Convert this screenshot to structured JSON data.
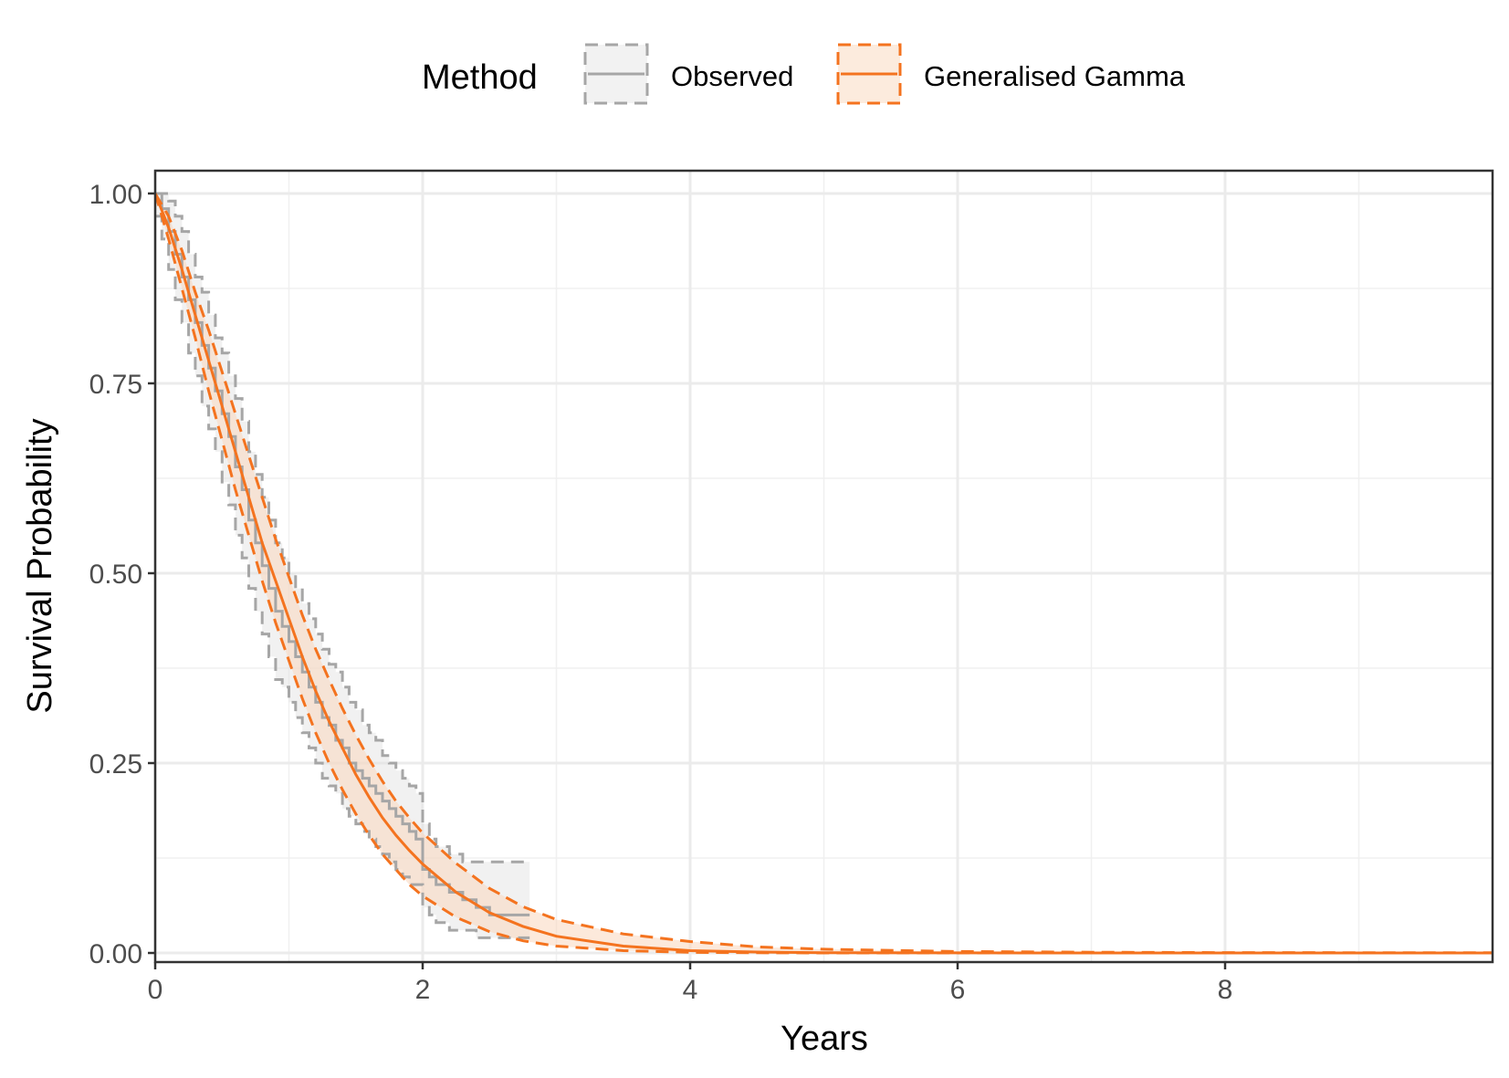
{
  "chart_data": {
    "type": "line",
    "xlabel": "Years",
    "ylabel": "Survival Probability",
    "xlim": [
      0,
      10
    ],
    "ylim": [
      -0.012,
      1.03
    ],
    "xticks": [
      0,
      2,
      4,
      6,
      8
    ],
    "xtick_labels": [
      "0",
      "2",
      "4",
      "6",
      "8"
    ],
    "yticks": [
      0,
      0.25,
      0.5,
      0.75,
      1
    ],
    "ytick_labels": [
      "0.00",
      "0.25",
      "0.50",
      "0.75",
      "1.00"
    ],
    "grid": true,
    "legend_position": "top",
    "legend": {
      "title": "Method",
      "entries": [
        "Observed",
        "Generalised Gamma"
      ]
    },
    "series": [
      {
        "name": "Observed",
        "color": "#a6a6a6",
        "step": true,
        "x": [
          0,
          0.05,
          0.1,
          0.15,
          0.2,
          0.25,
          0.3,
          0.35,
          0.4,
          0.45,
          0.5,
          0.55,
          0.6,
          0.65,
          0.7,
          0.75,
          0.8,
          0.85,
          0.9,
          0.95,
          1.0,
          1.05,
          1.1,
          1.15,
          1.2,
          1.25,
          1.3,
          1.35,
          1.4,
          1.45,
          1.5,
          1.55,
          1.6,
          1.65,
          1.7,
          1.75,
          1.8,
          1.85,
          1.9,
          1.95,
          2.0,
          2.05,
          2.1,
          2.2,
          2.3,
          2.4,
          2.5,
          2.8
        ],
        "y": [
          1.0,
          0.98,
          0.95,
          0.92,
          0.89,
          0.86,
          0.83,
          0.8,
          0.77,
          0.74,
          0.71,
          0.68,
          0.64,
          0.61,
          0.57,
          0.54,
          0.51,
          0.48,
          0.45,
          0.43,
          0.41,
          0.39,
          0.37,
          0.35,
          0.33,
          0.31,
          0.3,
          0.28,
          0.27,
          0.25,
          0.24,
          0.23,
          0.22,
          0.21,
          0.2,
          0.19,
          0.18,
          0.17,
          0.16,
          0.15,
          0.11,
          0.1,
          0.09,
          0.08,
          0.07,
          0.06,
          0.05,
          0.05
        ],
        "lower": [
          0.97,
          0.94,
          0.9,
          0.86,
          0.83,
          0.79,
          0.76,
          0.72,
          0.69,
          0.66,
          0.62,
          0.59,
          0.55,
          0.52,
          0.48,
          0.45,
          0.42,
          0.39,
          0.36,
          0.35,
          0.33,
          0.31,
          0.29,
          0.27,
          0.25,
          0.23,
          0.22,
          0.21,
          0.19,
          0.18,
          0.17,
          0.16,
          0.15,
          0.14,
          0.13,
          0.12,
          0.11,
          0.1,
          0.09,
          0.09,
          0.06,
          0.05,
          0.04,
          0.03,
          0.03,
          0.02,
          0.02,
          0.02
        ],
        "upper": [
          1.0,
          1.0,
          0.99,
          0.97,
          0.95,
          0.92,
          0.89,
          0.87,
          0.84,
          0.81,
          0.79,
          0.76,
          0.73,
          0.7,
          0.66,
          0.63,
          0.6,
          0.57,
          0.54,
          0.52,
          0.5,
          0.48,
          0.46,
          0.44,
          0.42,
          0.4,
          0.38,
          0.37,
          0.35,
          0.33,
          0.32,
          0.3,
          0.29,
          0.28,
          0.26,
          0.25,
          0.24,
          0.23,
          0.22,
          0.21,
          0.17,
          0.15,
          0.14,
          0.13,
          0.12,
          0.12,
          0.12,
          0.12
        ]
      },
      {
        "name": "Generalised Gamma",
        "color": "#f4731f",
        "x": [
          0,
          0.1,
          0.2,
          0.3,
          0.4,
          0.5,
          0.6,
          0.7,
          0.8,
          0.9,
          1.0,
          1.1,
          1.2,
          1.3,
          1.4,
          1.5,
          1.6,
          1.7,
          1.8,
          1.9,
          2.0,
          2.25,
          2.5,
          2.75,
          3.0,
          3.5,
          4.0,
          4.5,
          5.0,
          6.0,
          7.0,
          8.0,
          10.0
        ],
        "y": [
          1.0,
          0.955,
          0.9,
          0.84,
          0.78,
          0.72,
          0.66,
          0.6,
          0.54,
          0.49,
          0.44,
          0.39,
          0.345,
          0.305,
          0.27,
          0.235,
          0.205,
          0.178,
          0.155,
          0.135,
          0.117,
          0.08,
          0.053,
          0.035,
          0.022,
          0.009,
          0.003,
          0.0012,
          0.0004,
          0.0001,
          0.0,
          0.0,
          0.0
        ],
        "lower": [
          1.0,
          0.94,
          0.875,
          0.81,
          0.74,
          0.675,
          0.61,
          0.55,
          0.49,
          0.435,
          0.385,
          0.335,
          0.29,
          0.25,
          0.215,
          0.183,
          0.155,
          0.13,
          0.11,
          0.09,
          0.075,
          0.047,
          0.028,
          0.016,
          0.009,
          0.003,
          0.0008,
          0.0002,
          0.0,
          0.0,
          0.0,
          0.0,
          0.0
        ],
        "upper": [
          1.0,
          0.97,
          0.925,
          0.87,
          0.82,
          0.765,
          0.71,
          0.655,
          0.6,
          0.545,
          0.495,
          0.445,
          0.4,
          0.36,
          0.322,
          0.287,
          0.255,
          0.226,
          0.2,
          0.178,
          0.158,
          0.118,
          0.085,
          0.061,
          0.044,
          0.025,
          0.015,
          0.008,
          0.005,
          0.002,
          0.001,
          0.0005,
          0.0002
        ]
      }
    ]
  }
}
